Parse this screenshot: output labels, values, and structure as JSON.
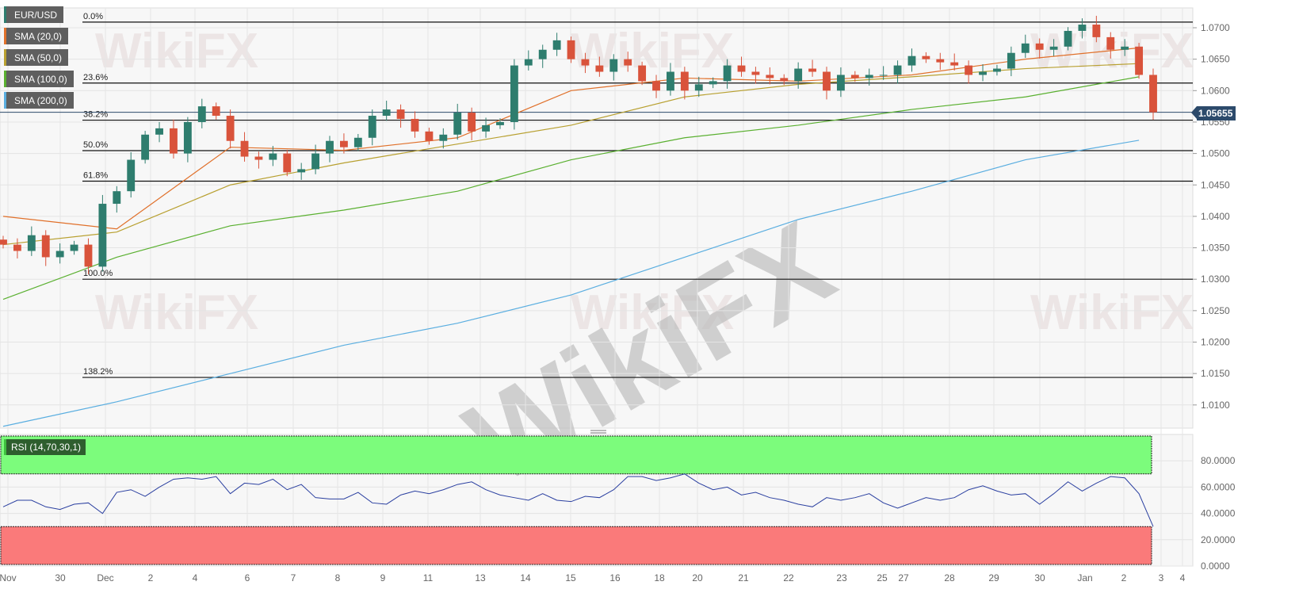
{
  "watermark": "WikiFX",
  "legend": [
    {
      "label": "EUR/USD",
      "color": "#2e7d6e"
    },
    {
      "label": "SMA (20,0)",
      "color": "#e0702a"
    },
    {
      "label": "SMA (50,0)",
      "color": "#b8a030"
    },
    {
      "label": "SMA (100,0)",
      "color": "#5ab030"
    },
    {
      "label": "SMA (200,0)",
      "color": "#5aaee0"
    }
  ],
  "rsi_label": "RSI (14,70,30,1)",
  "current_price": "1.05655",
  "chart_data": [
    {
      "type": "candlestick",
      "symbol": "EUR/USD",
      "ylim": [
        1.0065,
        1.074
      ],
      "y_ticks": [
        "1.0700",
        "1.0650",
        "1.0600",
        "1.0550",
        "1.0500",
        "1.0450",
        "1.0400",
        "1.0350",
        "1.0300",
        "1.0250",
        "1.0200",
        "1.0150",
        "1.0100"
      ],
      "x_ticks": [
        "Nov",
        "30",
        "Dec",
        "2",
        "4",
        "6",
        "7",
        "8",
        "9",
        "11",
        "13",
        "14",
        "15",
        "16",
        "18",
        "20",
        "21",
        "22",
        "23",
        "25",
        "27",
        "28",
        "29",
        "30",
        "Jan",
        "2",
        "3",
        "4"
      ],
      "grid": true,
      "up_color": "#2e7d6e",
      "down_color": "#d9533b",
      "closes": [
        1.0355,
        1.0345,
        1.037,
        1.0335,
        1.0345,
        1.0355,
        1.032,
        1.042,
        1.044,
        1.049,
        1.053,
        1.054,
        1.05,
        1.055,
        1.0575,
        1.056,
        1.052,
        1.0495,
        1.049,
        1.05,
        1.047,
        1.0475,
        1.05,
        1.052,
        1.051,
        1.0525,
        1.056,
        1.057,
        1.0555,
        1.0535,
        1.052,
        1.053,
        1.0565,
        1.0535,
        1.0545,
        1.055,
        1.064,
        1.065,
        1.0665,
        1.068,
        1.065,
        1.064,
        1.063,
        1.065,
        1.064,
        1.0615,
        1.06,
        1.063,
        1.06,
        1.061,
        1.0615,
        1.064,
        1.063,
        1.0625,
        1.062,
        1.0615,
        1.0635,
        1.063,
        1.06,
        1.0625,
        1.062,
        1.0625,
        1.0625,
        1.064,
        1.0655,
        1.065,
        1.0645,
        1.064,
        1.0625,
        1.063,
        1.0635,
        1.066,
        1.0675,
        1.0665,
        1.067,
        1.0695,
        1.0705,
        1.0685,
        1.0665,
        1.067,
        1.0625,
        1.05655
      ],
      "sma_sample_step": 8,
      "series": [
        {
          "name": "SMA (20,0)",
          "values": [
            1.04,
            1.038,
            1.051,
            1.0505,
            1.0525,
            1.06,
            1.062,
            1.0615,
            1.0625,
            1.065,
            1.0668
          ]
        },
        {
          "name": "SMA (50,0)",
          "values": [
            1.0355,
            1.0375,
            1.045,
            1.0485,
            1.0515,
            1.0545,
            1.059,
            1.061,
            1.0622,
            1.0635,
            1.0643
          ]
        },
        {
          "name": "SMA (100,0)",
          "values": [
            1.0268,
            1.0335,
            1.0385,
            1.041,
            1.044,
            1.049,
            1.0525,
            1.0545,
            1.057,
            1.059,
            1.0622
          ]
        },
        {
          "name": "SMA (200,0)",
          "values": [
            1.0066,
            1.0105,
            1.015,
            1.0195,
            1.023,
            1.0275,
            1.0335,
            1.0395,
            1.044,
            1.049,
            1.0521
          ]
        }
      ],
      "fibonacci": [
        {
          "label": "0.0%",
          "price": 1.0709
        },
        {
          "label": "23.6%",
          "price": 1.0612
        },
        {
          "label": "38.2%",
          "price": 1.0553
        },
        {
          "label": "50.0%",
          "price": 1.05045
        },
        {
          "label": "61.8%",
          "price": 1.0456
        },
        {
          "label": "100.0%",
          "price": 1.03
        },
        {
          "label": "138.2%",
          "price": 1.01438
        }
      ]
    },
    {
      "type": "line",
      "name": "RSI (14,70,30,1)",
      "ylim": [
        0,
        100
      ],
      "y_ticks": [
        "80.0000",
        "60.0000",
        "40.0000",
        "20.0000",
        "0.0000"
      ],
      "overbought": 70,
      "oversold": 30,
      "overbought_color": "#7cfc7c",
      "oversold_color": "#fa7a7a",
      "line_color": "#2a3fa0",
      "values": [
        45,
        50,
        50,
        45,
        43,
        47,
        48,
        40,
        56,
        58,
        53,
        60,
        66,
        67,
        66,
        68,
        55,
        63,
        62,
        66,
        58,
        62,
        52,
        51,
        51,
        56,
        48,
        47,
        54,
        57,
        55,
        58,
        62,
        64,
        58,
        54,
        52,
        50,
        55,
        50,
        49,
        53,
        52,
        58,
        68,
        68,
        65,
        67,
        70,
        63,
        58,
        60,
        54,
        56,
        52,
        50,
        47,
        45,
        52,
        50,
        52,
        55,
        48,
        44,
        48,
        52,
        50,
        52,
        58,
        61,
        57,
        54,
        55,
        47,
        55,
        64,
        57,
        63,
        68,
        67,
        55,
        30
      ]
    }
  ]
}
